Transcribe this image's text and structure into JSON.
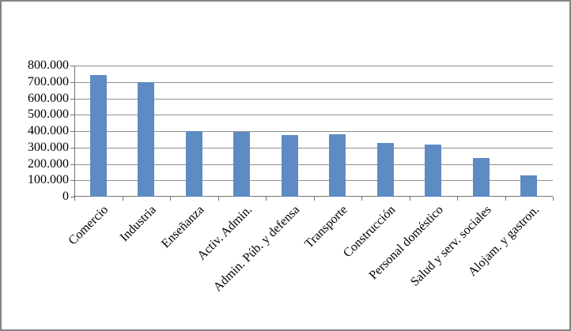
{
  "window": {
    "background_color": "#ffffff",
    "border_color": "#848484"
  },
  "chart_data": {
    "type": "bar",
    "title": "",
    "legend": false,
    "grid": true,
    "categories": [
      "Comercio",
      "Industria",
      "Enseñanza",
      "Activ. Admin.",
      "Admin. Púb. y defensa",
      "Transporte",
      "Construcción",
      "Personal doméstico",
      "Salud y serv. sociales",
      "Alojam. y gastron."
    ],
    "values": [
      740000,
      700000,
      400000,
      395000,
      378000,
      380000,
      330000,
      320000,
      238000,
      131000
    ],
    "ylim": [
      0,
      800000
    ],
    "y_step": 100000,
    "y_tick_labels": [
      "800.000",
      "700.000",
      "600.000",
      "500.000",
      "400.000",
      "300.000",
      "200.000",
      "100.000",
      "0"
    ],
    "xlabel": "",
    "ylabel": "",
    "bar_color": "#4f81bd",
    "grid_color": "#8f8f8f",
    "axis_color": "#747474",
    "text_color": "#000000"
  }
}
